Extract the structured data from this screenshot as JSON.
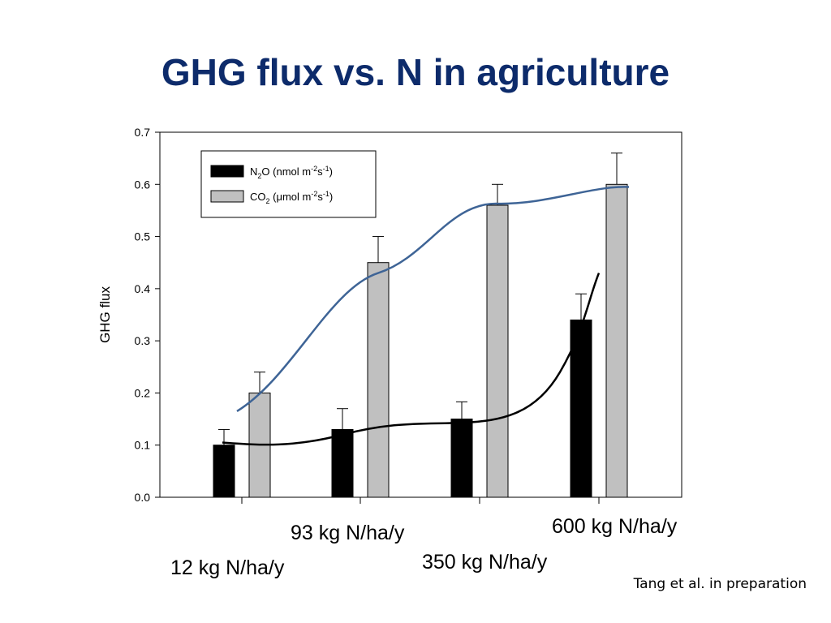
{
  "slide": {
    "title": "GHG flux vs. N in agriculture",
    "citation": "Tang et al. in preparation"
  },
  "colors": {
    "title": "#0d2b6b",
    "n2o_bar": "#000000",
    "co2_bar": "#c0c0c0",
    "co2_curve": "#3e6496",
    "n2o_curve": "#000000"
  },
  "chart_data": {
    "type": "bar",
    "ylabel": "GHG flux",
    "xlabel": "",
    "ylim": [
      0,
      0.7
    ],
    "yticks": [
      "0.0",
      "0.1",
      "0.2",
      "0.3",
      "0.4",
      "0.5",
      "0.6",
      "0.7"
    ],
    "categories": [
      "12 kg N/ha/y",
      "93 kg N/ha/y",
      "350 kg N/ha/y",
      "600 kg N/ha/y"
    ],
    "series": [
      {
        "name_main": "N",
        "name_sub": "2",
        "name_rest": "O (nmol m",
        "name_sup1": "-2",
        "name_mid": "s",
        "name_sup2": "-1",
        "name_end": ")",
        "values": [
          0.1,
          0.13,
          0.15,
          0.34
        ],
        "errors": [
          0.03,
          0.04,
          0.033,
          0.05
        ]
      },
      {
        "name_main": "CO",
        "name_sub": "2",
        "name_rest": " (μmol m",
        "name_sup1": "-2",
        "name_mid": "s",
        "name_sup2": "-1",
        "name_end": ")",
        "values": [
          0.2,
          0.45,
          0.56,
          0.6
        ],
        "errors": [
          0.04,
          0.05,
          0.04,
          0.06
        ]
      }
    ],
    "legend_position": "top-left",
    "trend_lines": [
      {
        "series": "CO2",
        "shape": "sigmoid"
      },
      {
        "series": "N2O",
        "shape": "exponential"
      }
    ]
  }
}
